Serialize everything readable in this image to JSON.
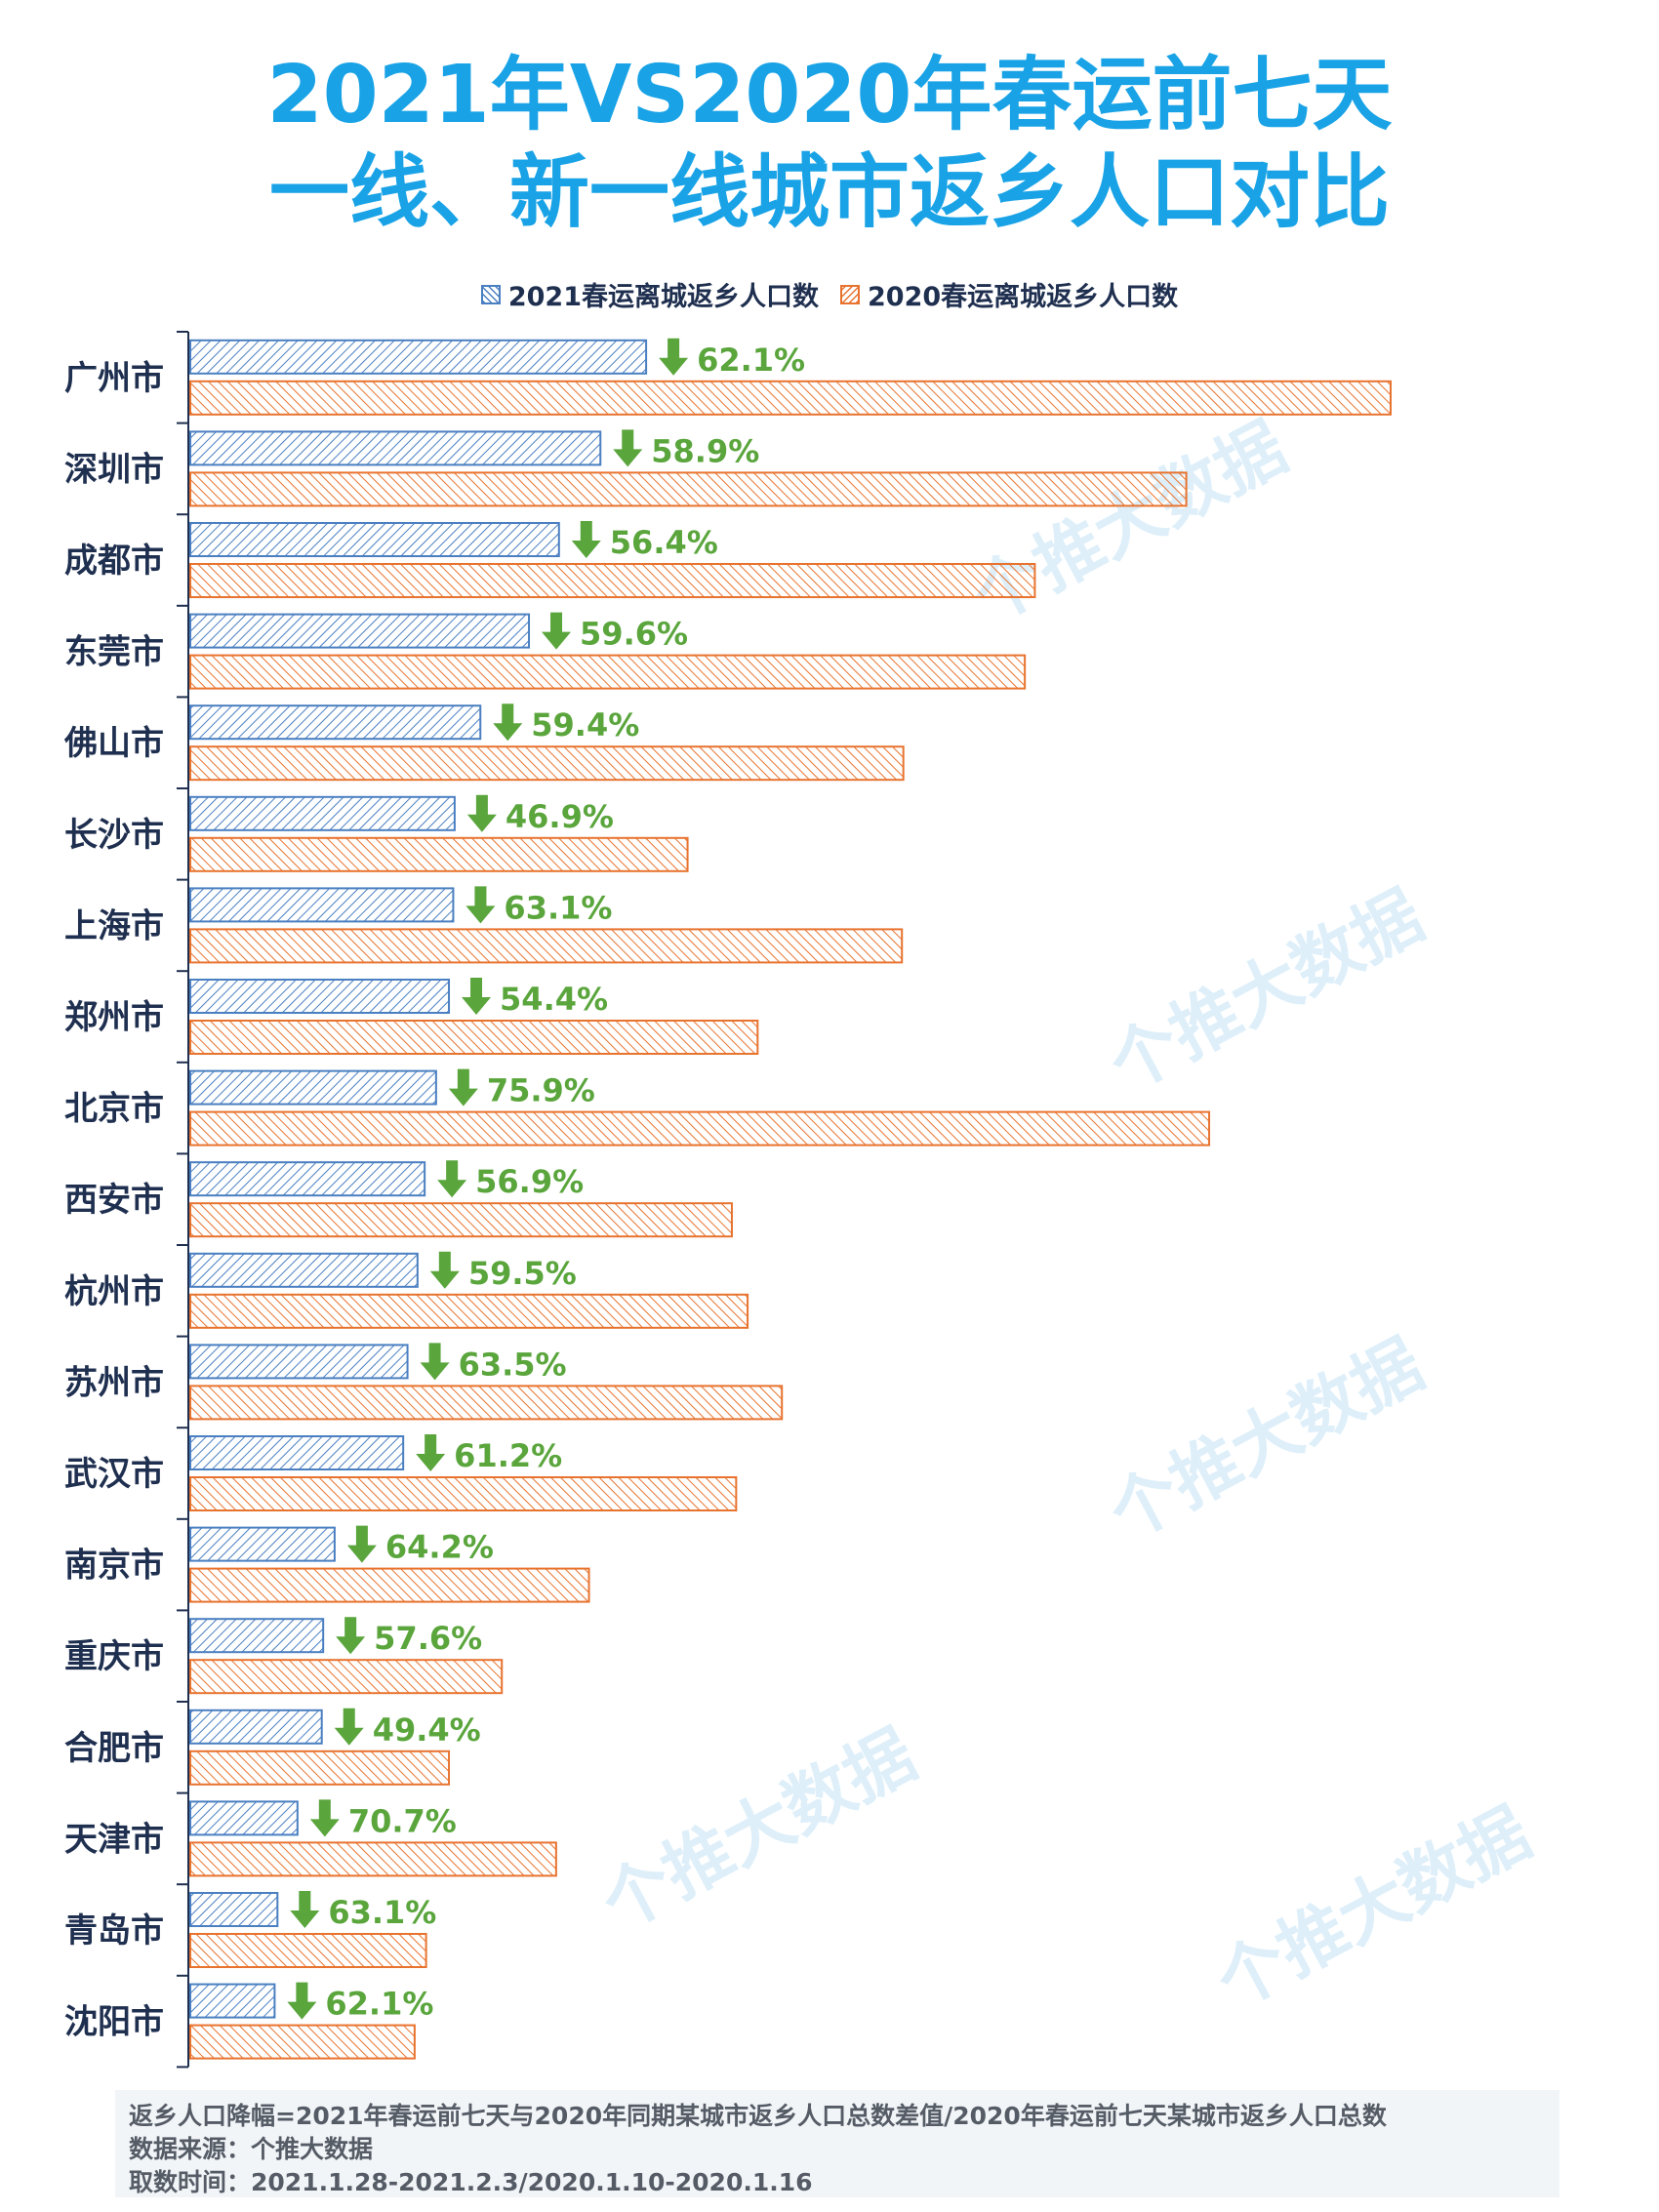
{
  "title_line1": "2021年VS2020年春运前七天",
  "title_line2": "一线、新一线城市返乡人口对比",
  "legend": [
    "2021春运离城返乡人口数",
    "2020春运离城返乡人口数"
  ],
  "colors": {
    "title": "#19a3e6",
    "series_2021": "#4a7fc1",
    "series_2020": "#e8732f",
    "decline": "#5aa53c"
  },
  "watermark": "个推大数据",
  "chart_data": {
    "type": "bar",
    "orientation": "horizontal",
    "grid": false,
    "legend_position": "top",
    "categories": [
      "广州市",
      "深圳市",
      "成都市",
      "东莞市",
      "佛山市",
      "长沙市",
      "上海市",
      "郑州市",
      "北京市",
      "西安市",
      "杭州市",
      "苏州市",
      "武汉市",
      "南京市",
      "重庆市",
      "合肥市",
      "天津市",
      "青岛市",
      "沈阳市"
    ],
    "series": [
      {
        "name": "2021春运离城返乡人口数",
        "values": [
          319,
          287,
          258,
          237,
          203,
          185,
          184,
          181,
          172,
          164,
          159,
          152,
          149,
          101,
          93,
          92,
          75,
          61,
          59
        ]
      },
      {
        "name": "2020春运离城返乡人口数",
        "values": [
          840,
          697,
          591,
          584,
          499,
          348,
          498,
          397,
          713,
          379,
          390,
          414,
          382,
          279,
          218,
          181,
          256,
          165,
          157
        ]
      }
    ],
    "annotations": [
      "62.1%",
      "58.9%",
      "56.4%",
      "59.6%",
      "59.4%",
      "46.9%",
      "63.1%",
      "54.4%",
      "75.9%",
      "56.9%",
      "59.5%",
      "63.5%",
      "61.2%",
      "64.2%",
      "57.6%",
      "49.4%",
      "70.7%",
      "63.1%",
      "62.1%"
    ],
    "xlim": [
      0,
      870
    ]
  },
  "footer": {
    "line1": "返乡人口降幅=2021年春运前七天与2020年同期某城市返乡人口总数差值/2020年春运前七天某城市返乡人口总数",
    "line2": "数据来源：个推大数据",
    "line3": "取数时间：2021.1.28-2021.2.3/2020.1.10-2020.1.16"
  }
}
